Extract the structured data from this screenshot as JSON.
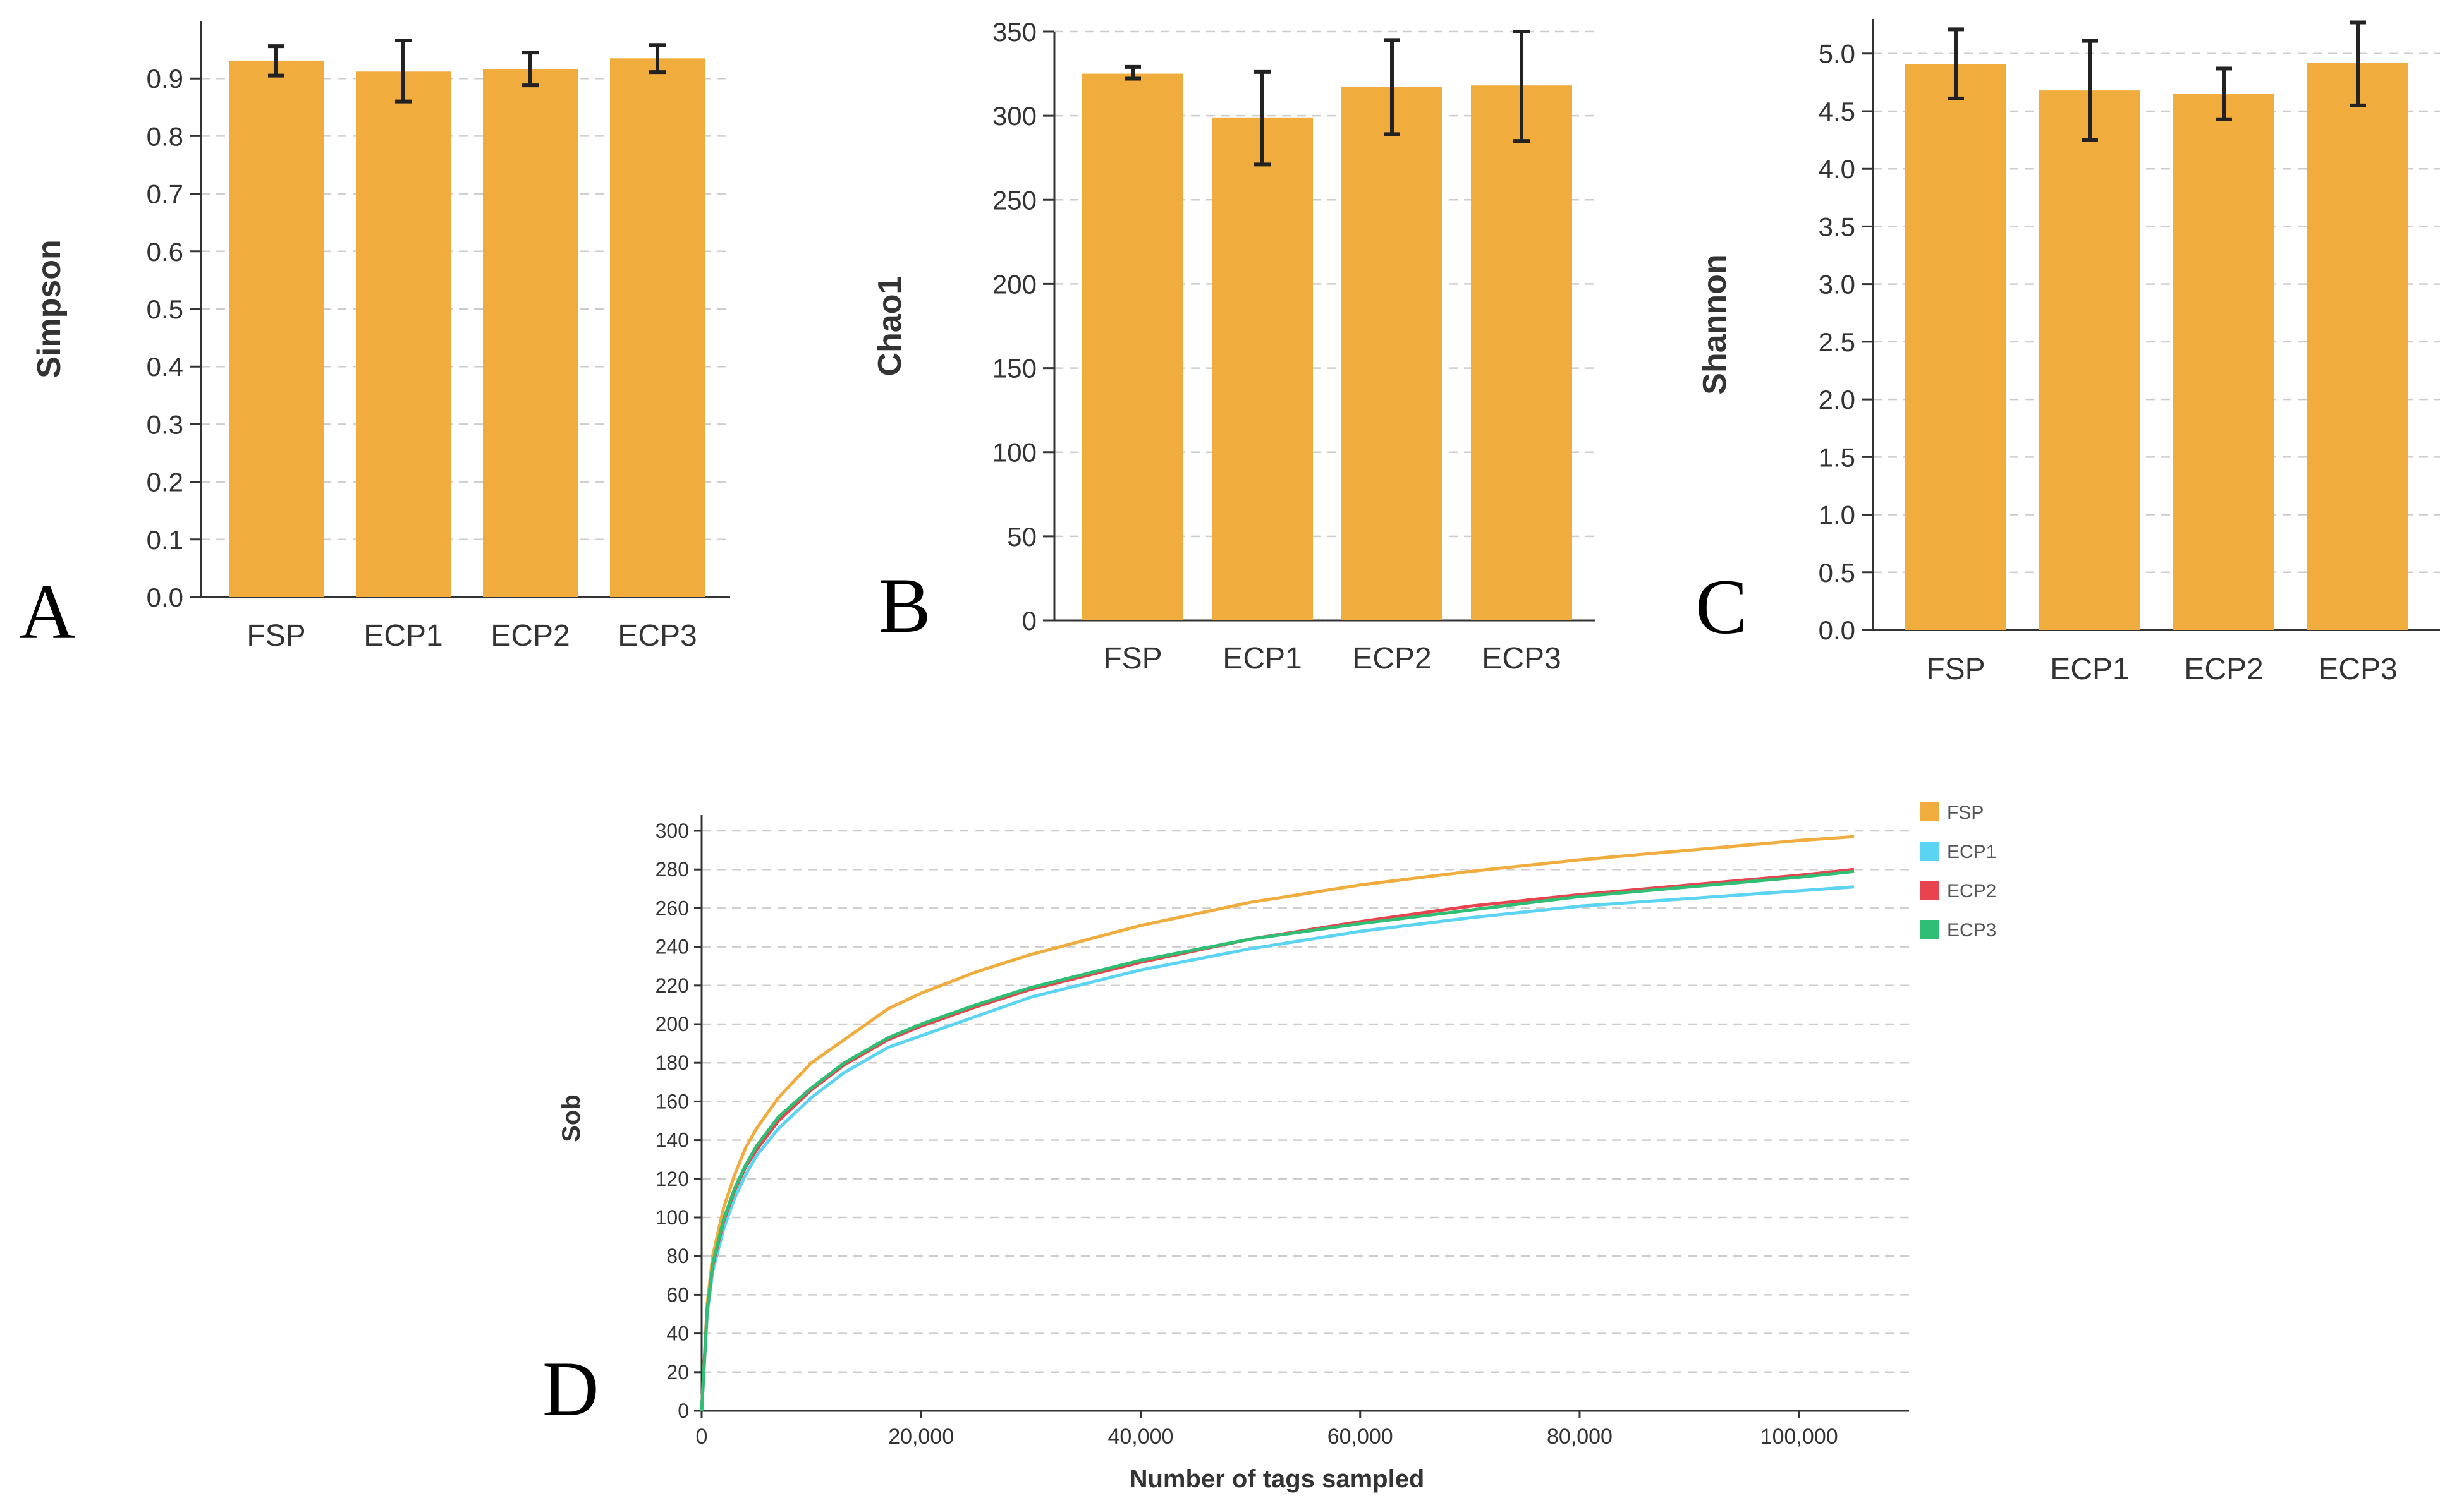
{
  "colors": {
    "bar": "#F0AD3D",
    "FSP": "#F0AD3D",
    "ECP1": "#5BD3F2",
    "ECP2": "#E8434E",
    "ECP3": "#2EBF74"
  },
  "chart_data": [
    {
      "panel": "A",
      "type": "bar",
      "categories": [
        "FSP",
        "ECP1",
        "ECP2",
        "ECP3"
      ],
      "values": [
        0.931,
        0.912,
        0.916,
        0.935
      ],
      "error_low": [
        0.905,
        0.86,
        0.888,
        0.911
      ],
      "error_high": [
        0.956,
        0.966,
        0.945,
        0.958
      ],
      "ylabel": "Simpson",
      "ylim": [
        0,
        1.0
      ],
      "yticks": [
        "0.0",
        "0.1",
        "0.2",
        "0.3",
        "0.4",
        "0.5",
        "0.6",
        "0.7",
        "0.8",
        "0.9"
      ],
      "ytick_values": [
        0,
        0.1,
        0.2,
        0.3,
        0.4,
        0.5,
        0.6,
        0.7,
        0.8,
        0.9
      ]
    },
    {
      "panel": "B",
      "type": "bar",
      "categories": [
        "FSP",
        "ECP1",
        "ECP2",
        "ECP3"
      ],
      "values": [
        325,
        299,
        317,
        318
      ],
      "error_low": [
        322,
        271,
        289,
        285
      ],
      "error_high": [
        329,
        326,
        345,
        350
      ],
      "ylabel": "Chao1",
      "ylim": [
        0,
        350
      ],
      "yticks": [
        "0",
        "50",
        "100",
        "150",
        "200",
        "250",
        "300",
        "350"
      ],
      "ytick_values": [
        0,
        50,
        100,
        150,
        200,
        250,
        300,
        350
      ]
    },
    {
      "panel": "C",
      "type": "bar",
      "categories": [
        "FSP",
        "ECP1",
        "ECP2",
        "ECP3"
      ],
      "values": [
        4.91,
        4.68,
        4.65,
        4.92
      ],
      "error_low": [
        4.61,
        4.25,
        4.43,
        4.55
      ],
      "error_high": [
        5.21,
        5.11,
        4.87,
        5.27
      ],
      "ylabel": "Shannon",
      "ylim": [
        0,
        5.3
      ],
      "yticks": [
        "0.0",
        "0.5",
        "1.0",
        "1.5",
        "2.0",
        "2.5",
        "3.0",
        "3.5",
        "4.0",
        "4.5",
        "5.0"
      ],
      "ytick_values": [
        0,
        0.5,
        1.0,
        1.5,
        2.0,
        2.5,
        3.0,
        3.5,
        4.0,
        4.5,
        5.0
      ]
    },
    {
      "panel": "D",
      "type": "line",
      "xlabel": "Number of tags sampled",
      "ylabel": "Sob",
      "xlim": [
        0,
        110000
      ],
      "ylim": [
        0,
        300
      ],
      "xticks": [
        "0",
        "20,000",
        "40,000",
        "60,000",
        "80,000",
        "100,000"
      ],
      "xtick_values": [
        0,
        20000,
        40000,
        60000,
        80000,
        100000
      ],
      "yticks": [
        "0",
        "20",
        "40",
        "60",
        "80",
        "100",
        "120",
        "140",
        "160",
        "180",
        "200",
        "220",
        "240",
        "260",
        "280",
        "300"
      ],
      "ytick_values": [
        0,
        20,
        40,
        60,
        80,
        100,
        120,
        140,
        160,
        180,
        200,
        220,
        240,
        260,
        280,
        300
      ],
      "legend_position": "top-right",
      "x": [
        0,
        500,
        1000,
        2000,
        3000,
        4000,
        5000,
        7000,
        10000,
        13000,
        17000,
        20000,
        25000,
        30000,
        40000,
        50000,
        60000,
        70000,
        80000,
        90000,
        100000,
        105000
      ],
      "series": [
        {
          "name": "FSP",
          "values": [
            0,
            55,
            80,
            105,
            122,
            136,
            146,
            162,
            180,
            192,
            208,
            216,
            227,
            236,
            251,
            263,
            272,
            279,
            285,
            290,
            295,
            297
          ]
        },
        {
          "name": "ECP1",
          "values": [
            0,
            50,
            72,
            94,
            110,
            122,
            132,
            146,
            162,
            175,
            188,
            194,
            204,
            214,
            228,
            239,
            248,
            255,
            261,
            265,
            269,
            271
          ]
        },
        {
          "name": "ECP2",
          "values": [
            0,
            52,
            75,
            98,
            114,
            126,
            135,
            150,
            166,
            179,
            192,
            199,
            209,
            218,
            232,
            244,
            253,
            261,
            267,
            272,
            277,
            280
          ]
        },
        {
          "name": "ECP3",
          "values": [
            0,
            52,
            76,
            99,
            115,
            127,
            137,
            152,
            167,
            180,
            193,
            200,
            210,
            219,
            233,
            244,
            252,
            259,
            266,
            271,
            276,
            279
          ]
        }
      ]
    }
  ]
}
